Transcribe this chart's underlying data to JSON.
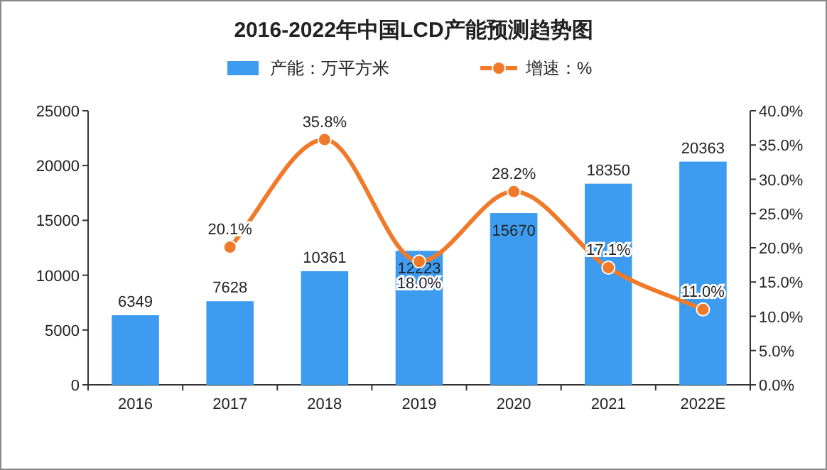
{
  "chart_data": {
    "type": "bar",
    "title": "2016-2022年中国LCD产能预测趋势图",
    "categories": [
      "2016",
      "2017",
      "2018",
      "2019",
      "2020",
      "2021",
      "2022E"
    ],
    "series": [
      {
        "name": "产能：万平方米",
        "color": "#3d9cf0",
        "values": [
          6349,
          7628,
          10361,
          12223,
          15670,
          18350,
          20363
        ],
        "value_labels": [
          "6349",
          "7628",
          "10361",
          "12223",
          "15670",
          "18350",
          "20363"
        ]
      },
      {
        "name": "增速：%",
        "type": "line",
        "axis": "y2",
        "color": "#f07a2a",
        "values": [
          null,
          20.1,
          35.8,
          18.0,
          28.2,
          17.1,
          11.0
        ],
        "value_labels": [
          null,
          "20.1%",
          "35.8%",
          "18.0%",
          "28.2%",
          "17.1%",
          "11.0%"
        ]
      }
    ],
    "ylim": [
      0,
      25000
    ],
    "yticks": [
      0,
      5000,
      10000,
      15000,
      20000,
      25000
    ],
    "y2lim": [
      0,
      40
    ],
    "y2ticks": [
      {
        "value": 0,
        "label": "0.0%"
      },
      {
        "value": 5,
        "label": "5.0%"
      },
      {
        "value": 10,
        "label": "10.0%"
      },
      {
        "value": 15,
        "label": "15.0%"
      },
      {
        "value": 20,
        "label": "20.0%"
      },
      {
        "value": 25,
        "label": "25.0%"
      },
      {
        "value": 30,
        "label": "30.0%"
      },
      {
        "value": 35,
        "label": "35.0%"
      },
      {
        "value": 40,
        "label": "40.0%"
      }
    ],
    "legend": "top",
    "grid": false,
    "marker": "circle",
    "line_style": "solid"
  }
}
